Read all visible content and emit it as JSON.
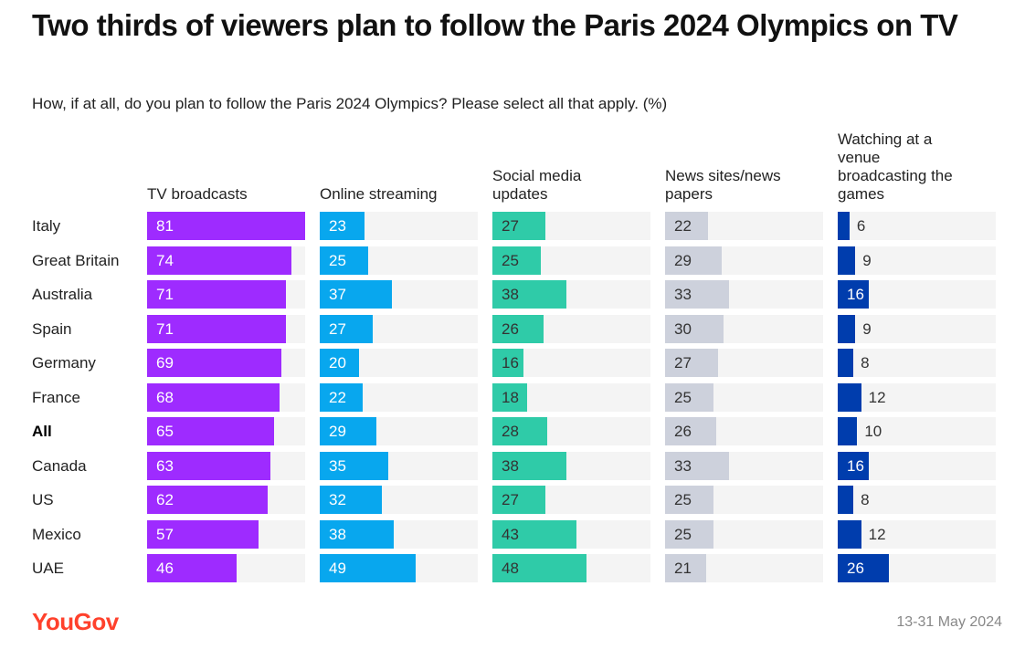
{
  "chart_data": {
    "type": "bar",
    "orientation": "horizontal",
    "title": "Two thirds of viewers plan to follow the Paris 2024 Olympics on TV",
    "subtitle": "How, if at all, do you plan to follow the Paris 2024 Olympics? Please select all that apply. (%)",
    "categories": [
      "Italy",
      "Great Britain",
      "Australia",
      "Spain",
      "Germany",
      "France",
      "All",
      "Canada",
      "US",
      "Mexico",
      "UAE"
    ],
    "bold_category": "All",
    "xlim": [
      0,
      81
    ],
    "series": [
      {
        "name": "TV broadcasts",
        "color": "#9e2bff",
        "label_color": "#ffffff",
        "values": [
          81,
          74,
          71,
          71,
          69,
          68,
          65,
          63,
          62,
          57,
          46
        ]
      },
      {
        "name": "Online streaming",
        "color": "#08a7ee",
        "label_color": "#ffffff",
        "values": [
          23,
          25,
          37,
          27,
          20,
          22,
          29,
          35,
          32,
          38,
          49
        ]
      },
      {
        "name": "Social media updates",
        "color": "#2fcba8",
        "label_color": "#333333",
        "values": [
          27,
          25,
          38,
          26,
          16,
          18,
          28,
          38,
          27,
          43,
          48
        ]
      },
      {
        "name": "News sites/news papers",
        "color": "#cdd1dc",
        "label_color": "#333333",
        "values": [
          22,
          29,
          33,
          30,
          27,
          25,
          26,
          33,
          25,
          25,
          21
        ]
      },
      {
        "name": "Watching at a venue broadcasting the games",
        "color": "#003dad",
        "label_color": "#ffffff",
        "values": [
          6,
          9,
          16,
          9,
          8,
          12,
          10,
          16,
          8,
          12,
          26
        ]
      }
    ]
  },
  "footer": {
    "logo": "YouGov",
    "date": "13-31 May 2024"
  }
}
